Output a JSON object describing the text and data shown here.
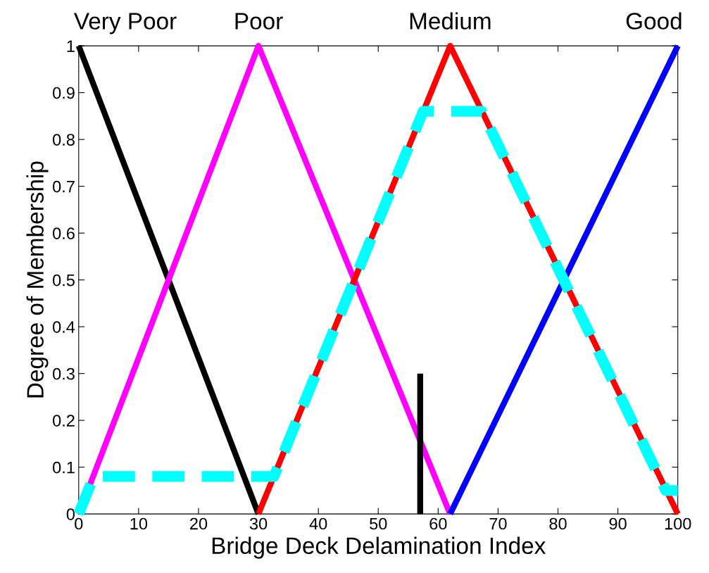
{
  "chart_data": {
    "type": "line",
    "xlabel": "Bridge Deck Delamination Index",
    "ylabel": "Degree of Membership",
    "xlim": [
      0,
      100
    ],
    "ylim": [
      0,
      1
    ],
    "xticks": [
      0,
      10,
      20,
      30,
      40,
      50,
      60,
      70,
      80,
      90,
      100
    ],
    "yticks": [
      0,
      0.1,
      0.2,
      0.3,
      0.4,
      0.5,
      0.6,
      0.7,
      0.8,
      0.9,
      1
    ],
    "grid": false,
    "legend": false,
    "marker": "none",
    "series": [
      {
        "name": "Very Poor",
        "color": "#000000",
        "x": [
          0,
          30
        ],
        "values": [
          1,
          0
        ]
      },
      {
        "name": "Poor",
        "color": "#ff00ff",
        "x": [
          0,
          30,
          62
        ],
        "values": [
          0,
          1,
          0
        ]
      },
      {
        "name": "Medium",
        "color": "#ff0000",
        "x": [
          30,
          62,
          100
        ],
        "values": [
          0,
          1,
          0
        ]
      },
      {
        "name": "Good",
        "color": "#0000ff",
        "x": [
          62,
          100
        ],
        "values": [
          0,
          1
        ]
      },
      {
        "color": "#00ffff",
        "line_style": "dashed",
        "x": [
          0,
          2.5,
          32.6,
          57.5,
          67.3,
          98,
          100
        ],
        "values": [
          0,
          0.08,
          0.08,
          0.86,
          0.86,
          0.05,
          0.05
        ]
      },
      {
        "color": "#000000",
        "x": [
          57,
          57
        ],
        "values": [
          0,
          0.3
        ]
      }
    ]
  }
}
